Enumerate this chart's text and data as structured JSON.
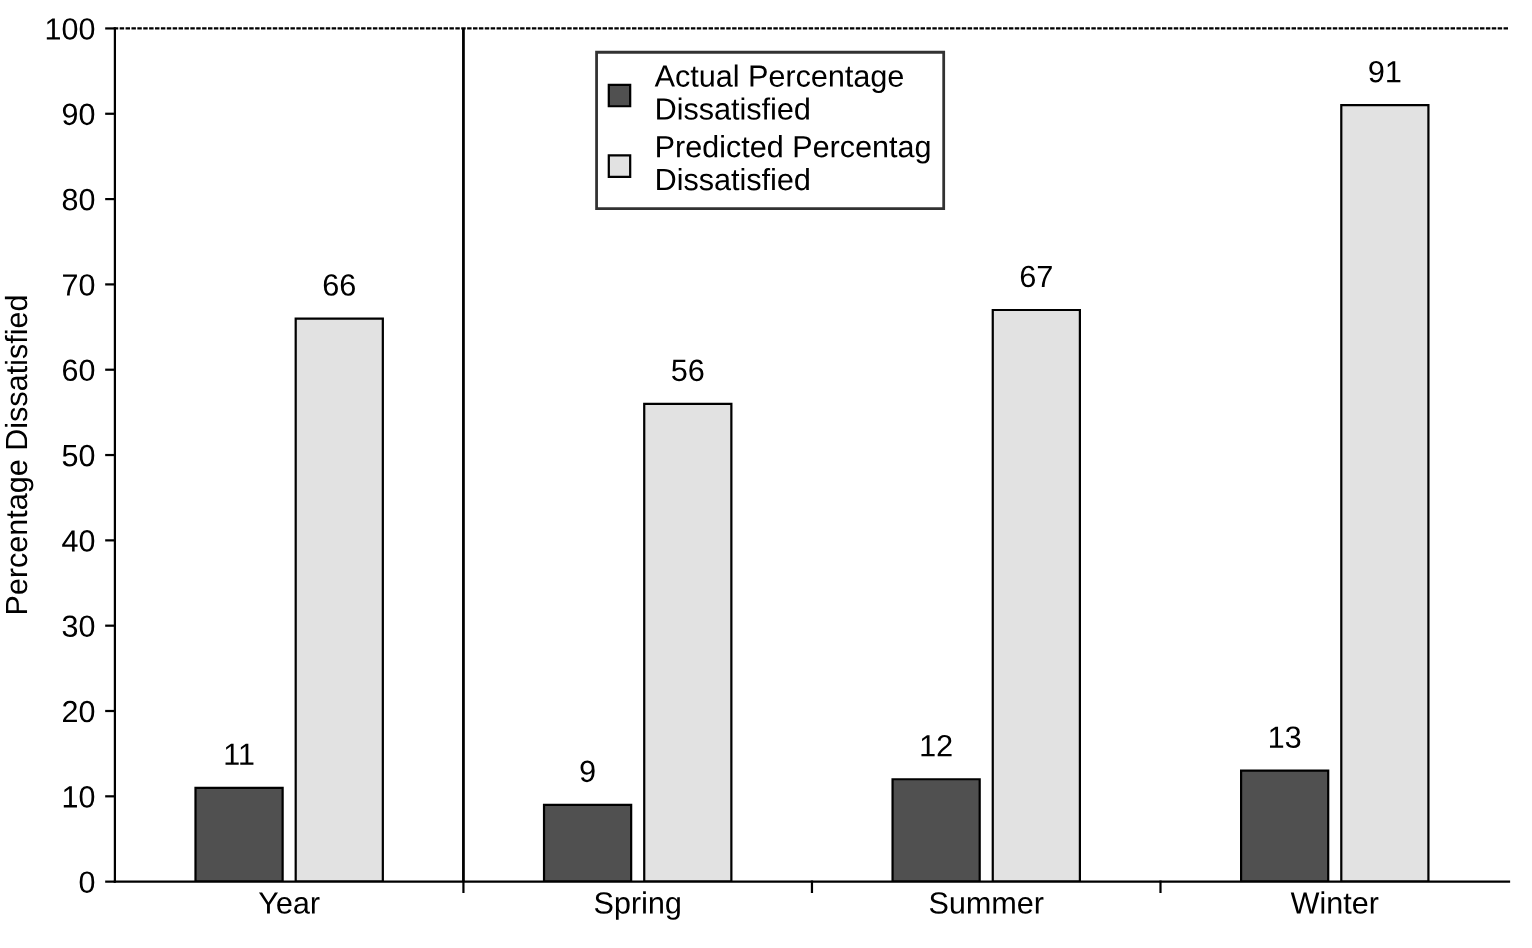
{
  "chart_data": {
    "type": "bar",
    "ylabel": "Percentage Dissatisfied",
    "categories": [
      "Year",
      "Spring",
      "Summer",
      "Winter"
    ],
    "series": [
      {
        "name": "Actual Percentage\nDissatisfied",
        "color": "#505050",
        "values": [
          11,
          9,
          12,
          13
        ]
      },
      {
        "name": "Predicted Percentag\nDissatisfied",
        "color": "#e2e2e2",
        "values": [
          66,
          56,
          67,
          91
        ]
      }
    ],
    "ylim": [
      0,
      100
    ],
    "yticks": [
      0,
      10,
      20,
      30,
      40,
      50,
      60,
      70,
      80,
      90,
      100
    ],
    "data_labels": true,
    "legend": "top",
    "grid": false
  }
}
